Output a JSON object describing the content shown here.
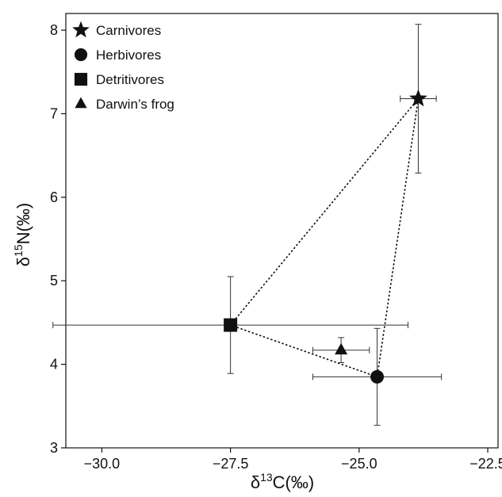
{
  "chart_data": {
    "type": "scatter",
    "title": "",
    "xlabel_parts": {
      "base": "δ",
      "sup": "13",
      "rest": "C(‰)"
    },
    "ylabel_parts": {
      "base": "δ",
      "sup": "15",
      "rest": "N(‰)"
    },
    "xlim": [
      -30.7,
      -22.3
    ],
    "ylim": [
      3.0,
      8.2
    ],
    "xticks": [
      -30.0,
      -27.5,
      -25.0,
      -22.5
    ],
    "xtick_labels": [
      "−30.0",
      "−27.5",
      "−25.0",
      "−22.5"
    ],
    "yticks": [
      3,
      4,
      5,
      6,
      7,
      8
    ],
    "ytick_labels": [
      "3",
      "4",
      "5",
      "6",
      "7",
      "8"
    ],
    "grid": false,
    "legend_position": "top-left",
    "series": [
      {
        "name": "Carnivores",
        "marker": "star",
        "x": -23.85,
        "y": 7.18,
        "x_err": 0.35,
        "y_err": 0.89
      },
      {
        "name": "Herbivores",
        "marker": "circle",
        "x": -24.65,
        "y": 3.85,
        "x_err": 1.25,
        "y_err": 0.58
      },
      {
        "name": "Detritivores",
        "marker": "square",
        "x": -27.5,
        "y": 4.47,
        "x_err": 3.45,
        "y_err": 0.58
      },
      {
        "name": "Darwin’s frog",
        "marker": "triangle",
        "x": -25.35,
        "y": 4.17,
        "x_err": 0.55,
        "y_err": 0.15
      }
    ],
    "polygon_order": [
      "Carnivores",
      "Herbivores",
      "Detritivores"
    ],
    "polygon_style": "dotted",
    "colors": {
      "marker": "#111111",
      "errorbar": "#333333",
      "axis": "#111111"
    }
  }
}
